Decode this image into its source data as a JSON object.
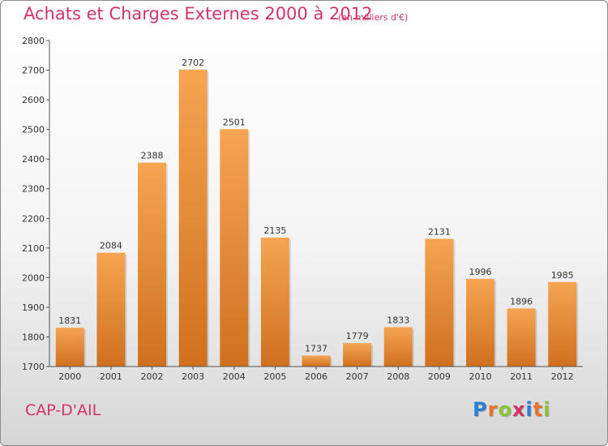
{
  "header": {
    "title": "Achats et Charges Externes 2000 à 2012",
    "unit_note": "(en milliers d'€)"
  },
  "footer": {
    "location": "CAP-D'AIL",
    "logo_letters": [
      "P",
      "r",
      "o",
      "x",
      "i",
      "t",
      "i"
    ],
    "logo_colors": [
      "#2a7fd4",
      "#e8742a",
      "#8cc43c",
      "#d2336a",
      "#2a7fd4",
      "#e8742a",
      "#8cc43c"
    ]
  },
  "chart_data": {
    "type": "bar",
    "categories": [
      "2000",
      "2001",
      "2002",
      "2003",
      "2004",
      "2005",
      "2006",
      "2007",
      "2008",
      "2009",
      "2010",
      "2011",
      "2012"
    ],
    "values": [
      1831,
      2084,
      2388,
      2702,
      2501,
      2135,
      1737,
      1779,
      1833,
      2131,
      1996,
      1896,
      1985
    ],
    "ylim": [
      1700,
      2800
    ],
    "yticks": [
      1700,
      1800,
      1900,
      2000,
      2100,
      2200,
      2300,
      2400,
      2500,
      2600,
      2700,
      2800
    ],
    "grid": false,
    "bar_color_top": "#f5a552",
    "bar_color_bottom": "#d0701e"
  }
}
